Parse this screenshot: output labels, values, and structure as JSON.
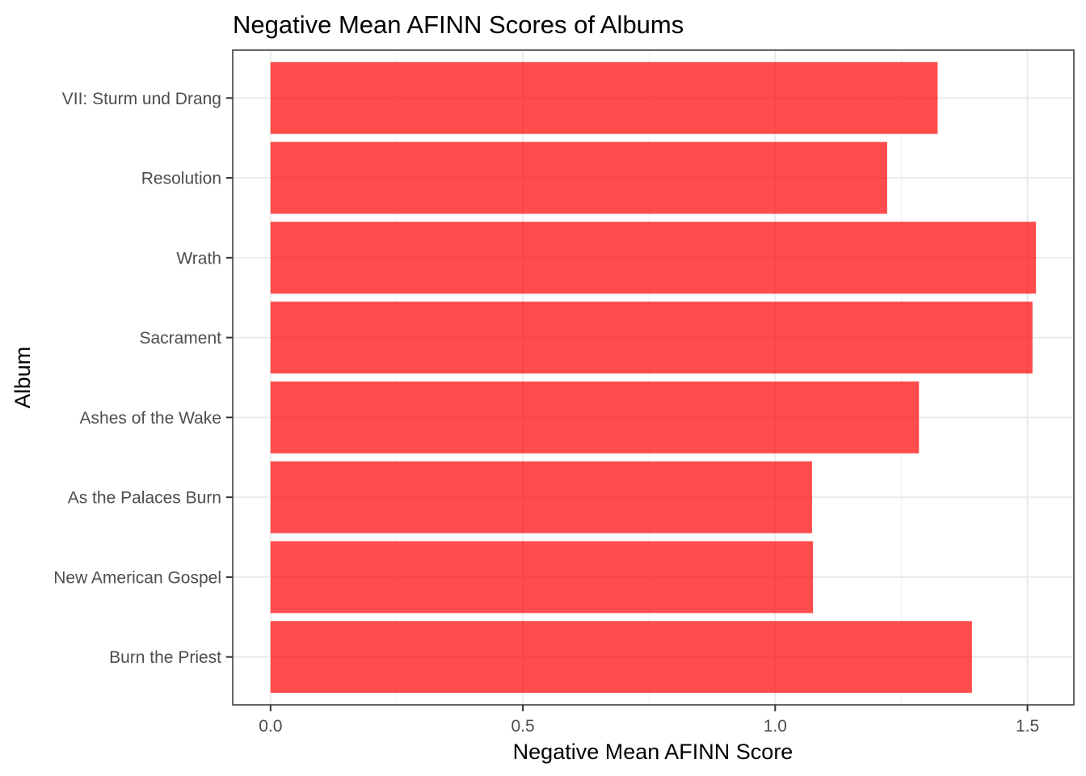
{
  "chart_data": {
    "type": "bar",
    "orientation": "horizontal",
    "title": "Negative Mean AFINN Scores of Albums",
    "xlabel": "Negative Mean AFINN Score",
    "ylabel": "Album",
    "categories": [
      "Burn the Priest",
      "New American Gospel",
      "As the Palaces Burn",
      "Ashes of the Wake",
      "Sacrament",
      "Wrath",
      "Resolution",
      "VII: Sturm und Drang"
    ],
    "values": [
      1.39,
      1.075,
      1.073,
      1.285,
      1.51,
      1.517,
      1.222,
      1.322
    ],
    "xlim": [
      -0.075,
      1.592
    ],
    "xticks": [
      0.0,
      0.5,
      1.0,
      1.5
    ],
    "xtick_labels": [
      "0.0",
      "0.5",
      "1.0",
      "1.5"
    ],
    "grid": true,
    "bar_color": "#ff0000",
    "theme": "bw"
  }
}
